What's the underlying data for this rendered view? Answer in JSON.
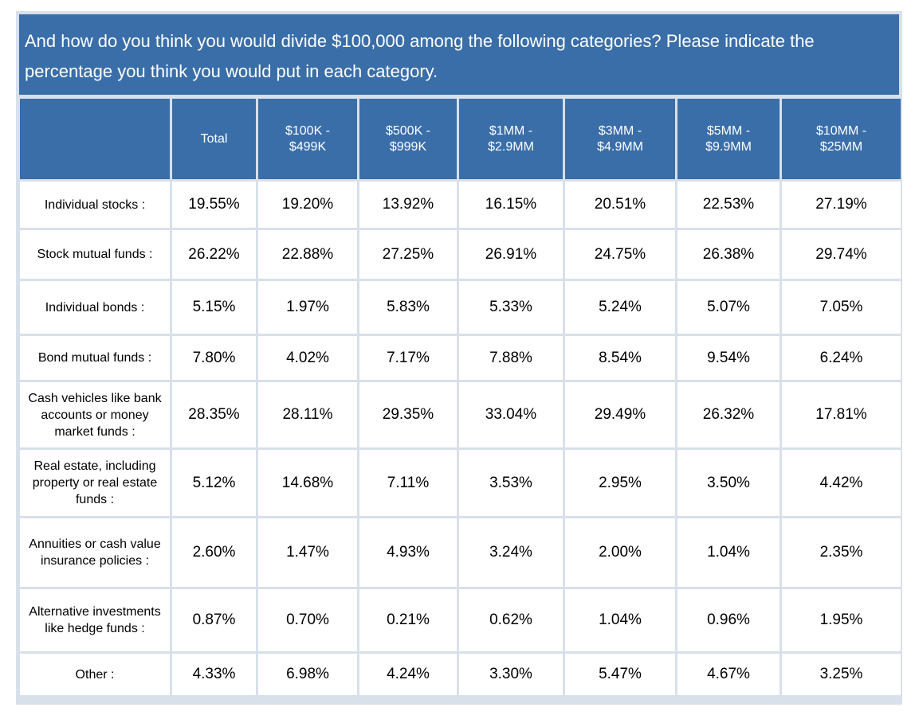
{
  "question": "And how do you think you would divide $100,000 among the following categories? Please indicate the percentage you think you would put in each category.",
  "chart_data": {
    "type": "table",
    "columns": [
      "",
      "Total",
      "$100K -\n$499K",
      "$500K -\n$999K",
      "$1MM -\n$2.9MM",
      "$3MM -\n$4.9MM",
      "$5MM -\n$9.9MM",
      "$10MM -\n$25MM"
    ],
    "rows": [
      {
        "label": "Individual stocks :",
        "values": [
          "19.55%",
          "19.20%",
          "13.92%",
          "16.15%",
          "20.51%",
          "22.53%",
          "27.19%"
        ]
      },
      {
        "label": "Stock mutual funds :",
        "values": [
          "26.22%",
          "22.88%",
          "27.25%",
          "26.91%",
          "24.75%",
          "26.38%",
          "29.74%"
        ]
      },
      {
        "label": "Individual bonds :",
        "values": [
          "5.15%",
          "1.97%",
          "5.83%",
          "5.33%",
          "5.24%",
          "5.07%",
          "7.05%"
        ]
      },
      {
        "label": "Bond mutual funds :",
        "values": [
          "7.80%",
          "4.02%",
          "7.17%",
          "7.88%",
          "8.54%",
          "9.54%",
          "6.24%"
        ]
      },
      {
        "label": "Cash vehicles like bank accounts or money market funds :",
        "values": [
          "28.35%",
          "28.11%",
          "29.35%",
          "33.04%",
          "29.49%",
          "26.32%",
          "17.81%"
        ]
      },
      {
        "label": "Real estate, including property or real estate funds :",
        "values": [
          "5.12%",
          "14.68%",
          "7.11%",
          "3.53%",
          "2.95%",
          "3.50%",
          "4.42%"
        ]
      },
      {
        "label": "Annuities or cash value insurance policies :",
        "values": [
          "2.60%",
          "1.47%",
          "4.93%",
          "3.24%",
          "2.00%",
          "1.04%",
          "2.35%"
        ]
      },
      {
        "label": "Alternative investments like hedge funds :",
        "values": [
          "0.87%",
          "0.70%",
          "0.21%",
          "0.62%",
          "1.04%",
          "0.96%",
          "1.95%"
        ]
      },
      {
        "label": "Other :",
        "values": [
          "4.33%",
          "6.98%",
          "4.24%",
          "3.30%",
          "5.47%",
          "4.67%",
          "3.25%"
        ]
      }
    ]
  },
  "colors": {
    "header_bg": "#3a6ea8",
    "header_text": "#ffffff",
    "grid": "#d8e0ea",
    "cell_bg": "#ffffff"
  }
}
